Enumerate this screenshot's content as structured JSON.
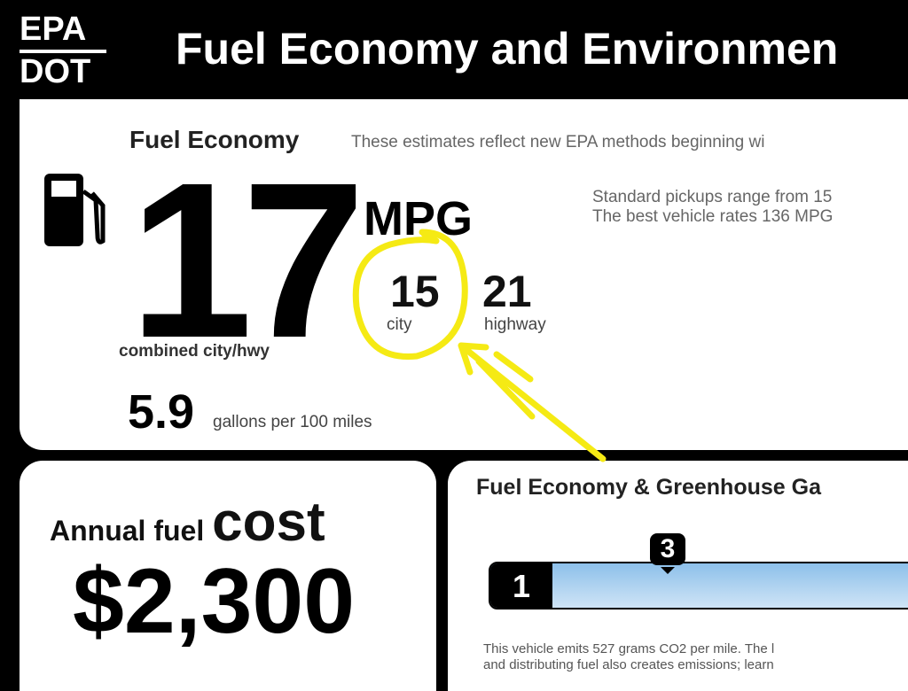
{
  "header": {
    "agency_top": "EPA",
    "agency_bottom": "DOT",
    "title": "Fuel Economy and Environmen"
  },
  "fuel_economy": {
    "title": "Fuel Economy",
    "note": "These estimates reflect new EPA methods beginning wi",
    "combined": "17",
    "unit": "MPG",
    "combined_label": "combined city/hwy",
    "city": "15",
    "city_label": "city",
    "highway": "21",
    "highway_label": "highway",
    "gallons": "5.9",
    "gallons_label": "gallons per 100 miles",
    "range_line1": "Standard pickups range from 15",
    "range_line2": "The best vehicle rates 136 MPG",
    "icon": "fuel-pump-icon"
  },
  "annual_cost": {
    "label": "Annual fuel",
    "label_big": "cost",
    "value": "$2,300"
  },
  "greenhouse": {
    "title": "Fuel Economy & Greenhouse Ga",
    "scale_min": "1",
    "rating": "3",
    "note_line1": "This vehicle emits 527 grams CO2 per mile. The l",
    "note_line2": "and distributing fuel also creates emissions; learn"
  },
  "annotation": {
    "color": "#f5ea14"
  }
}
